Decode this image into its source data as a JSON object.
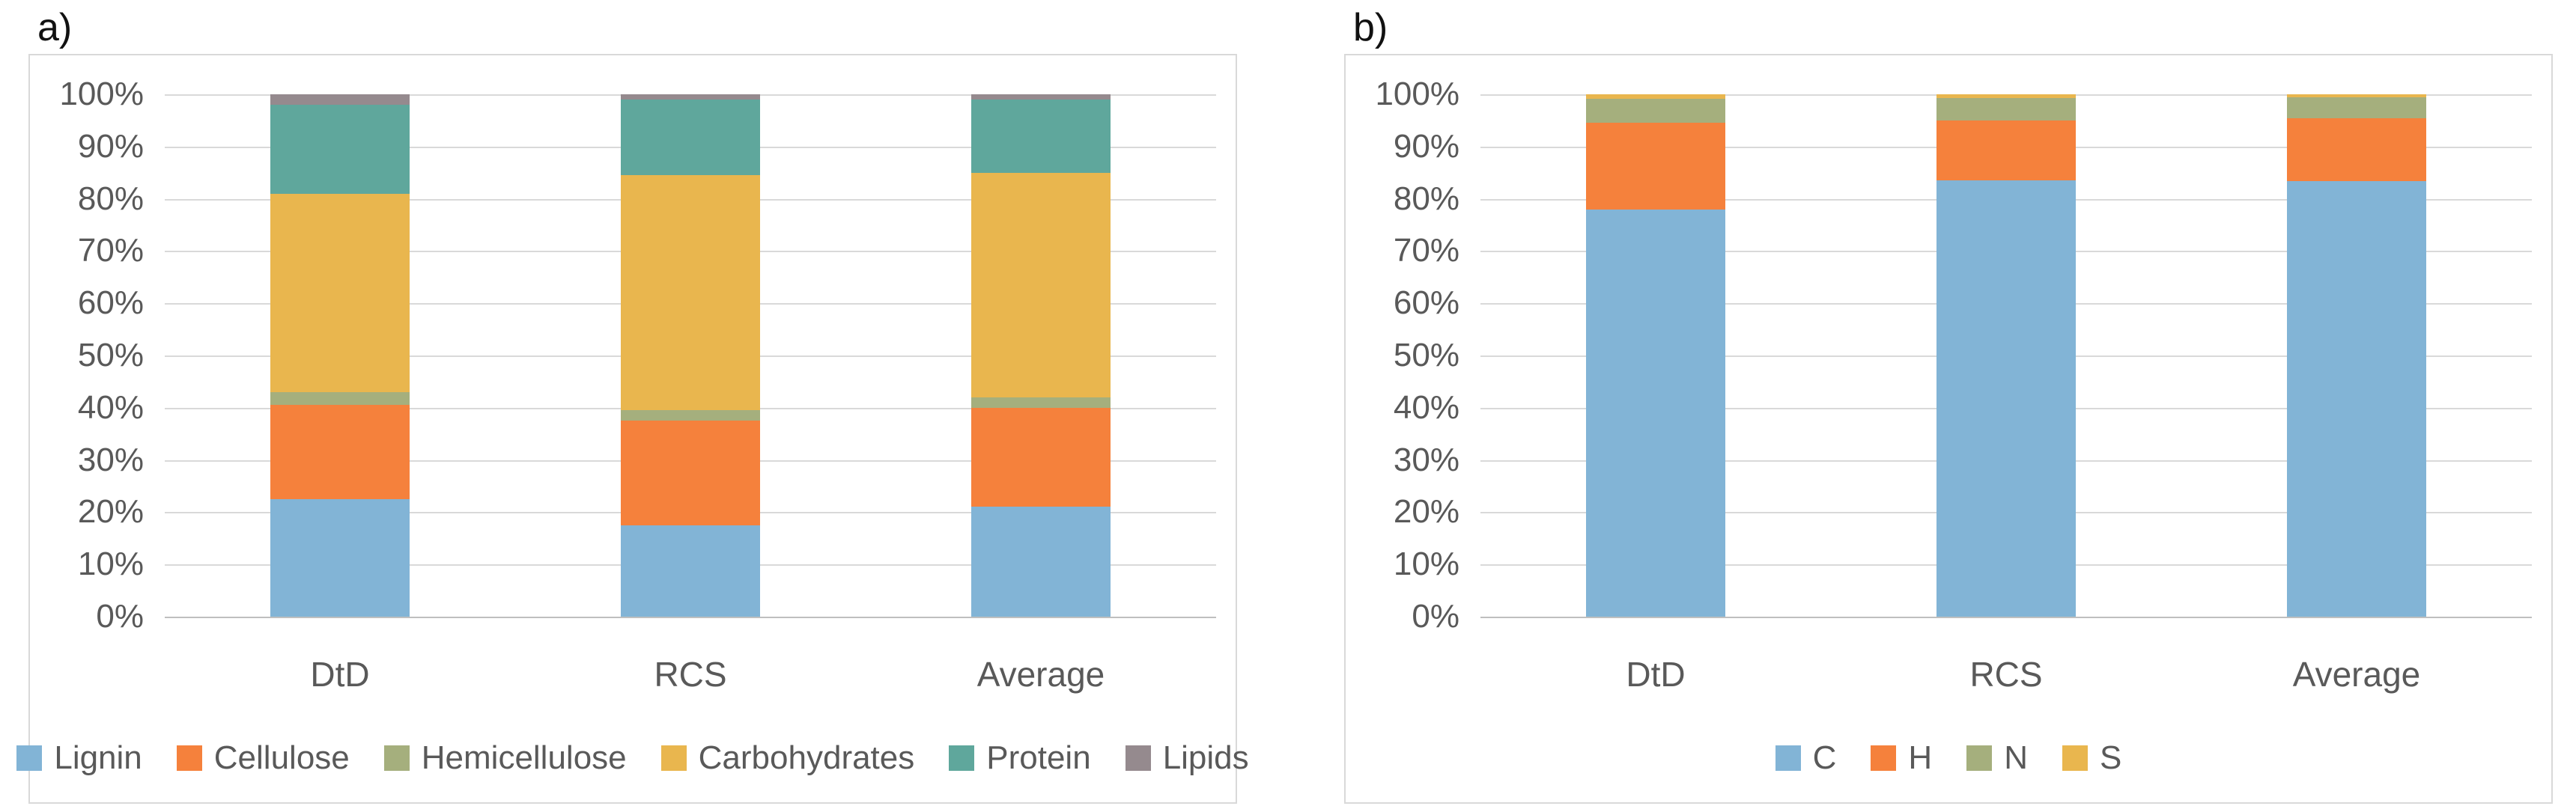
{
  "colors": {
    "background": "#FFFFFF",
    "panel_border": "#D9D9D9",
    "gridline": "#D9D9D9",
    "axis_line": "#BFBFBF",
    "axis_text": "#595959",
    "panel_label_text": "#111111",
    "series_blue": "#82B4D6",
    "series_orange": "#F5813C",
    "series_olive": "#A5AF7D",
    "series_gold": "#E9B64E",
    "series_teal": "#5FA79C",
    "series_gray": "#958A8E"
  },
  "chart_data": [
    {
      "panel_label": "a)",
      "type": "bar",
      "stacked": true,
      "units": "percent",
      "grid": true,
      "legend_position": "bottom",
      "ylim": [
        0,
        100
      ],
      "y_ticks": [
        "0%",
        "10%",
        "20%",
        "30%",
        "40%",
        "50%",
        "60%",
        "70%",
        "80%",
        "90%",
        "100%"
      ],
      "categories": [
        "DtD",
        "RCS",
        "Average"
      ],
      "series": [
        {
          "name": "Lignin",
          "color": "#82B4D6",
          "values": [
            22.5,
            17.5,
            21
          ]
        },
        {
          "name": "Cellulose",
          "color": "#F5813C",
          "values": [
            18,
            20,
            19
          ]
        },
        {
          "name": "Hemicellulose",
          "color": "#A5AF7D",
          "values": [
            2.5,
            2,
            2
          ]
        },
        {
          "name": "Carbohydrates",
          "color": "#E9B64E",
          "values": [
            38,
            45,
            43
          ]
        },
        {
          "name": "Protein",
          "color": "#5FA79C",
          "values": [
            17,
            14.5,
            14
          ]
        },
        {
          "name": "Lipids",
          "color": "#958A8E",
          "values": [
            2,
            1,
            1
          ]
        }
      ]
    },
    {
      "panel_label": "b)",
      "type": "bar",
      "stacked": true,
      "units": "percent",
      "grid": true,
      "legend_position": "bottom",
      "ylim": [
        0,
        100
      ],
      "y_ticks": [
        "0%",
        "10%",
        "20%",
        "30%",
        "40%",
        "50%",
        "60%",
        "70%",
        "80%",
        "90%",
        "100%"
      ],
      "categories": [
        "DtD",
        "RCS",
        "Average"
      ],
      "series": [
        {
          "name": "C",
          "color": "#82B4D6",
          "values": [
            78,
            83.5,
            83.4
          ]
        },
        {
          "name": "H",
          "color": "#F5813C",
          "values": [
            16.5,
            11.5,
            12
          ]
        },
        {
          "name": "N",
          "color": "#A5AF7D",
          "values": [
            4.7,
            4.3,
            4
          ]
        },
        {
          "name": "S",
          "color": "#E9B64E",
          "values": [
            0.8,
            0.7,
            0.6
          ]
        }
      ]
    }
  ]
}
